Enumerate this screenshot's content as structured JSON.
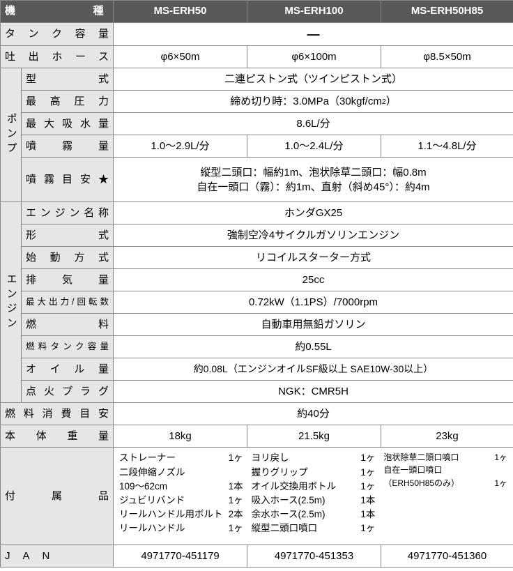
{
  "header": {
    "model_label": "機種",
    "models": [
      "MS-ERH50",
      "MS-ERH100",
      "MS-ERH50H85"
    ]
  },
  "rows": {
    "tank_capacity": {
      "label": "タンク容量",
      "value": "—"
    },
    "hose": {
      "label": "吐出ホース",
      "values": [
        "φ6×50m",
        "φ6×100m",
        "φ8.5×50m"
      ]
    },
    "pump_label": "ポンプ",
    "pump": {
      "type": {
        "label": "型式",
        "value": "二連ピストン式（ツインピストン式）"
      },
      "max_pressure": {
        "label": "最高圧力",
        "value_html": "締め切り時：3.0MPa（30kgf/cm<span class=\"sup\">2</span>）"
      },
      "max_intake": {
        "label": "最大吸水量",
        "value": "8.6L/分"
      },
      "spray_rate": {
        "label": "噴霧量",
        "values": [
          "1.0〜2.9L/分",
          "1.0〜2.4L/分",
          "1.1〜4.8L/分"
        ]
      },
      "spray_guide": {
        "label": "噴霧目安★",
        "line1": "縦型二頭口：幅約1m、泡状除草二頭口：幅0.8m",
        "line2": "自在一頭口（霧）：約1m、直射（斜め45°）：約4m"
      }
    },
    "engine_label": "エンジン",
    "engine": {
      "name": {
        "label": "エンジン名称",
        "value": "ホンダGX25"
      },
      "type": {
        "label": "形式",
        "value": "強制空冷4サイクルガソリンエンジン"
      },
      "start": {
        "label": "始動方式",
        "value": "リコイルスターター方式"
      },
      "disp": {
        "label": "排気量",
        "value": "25cc"
      },
      "power": {
        "label": "最大出力/回転数",
        "value": "0.72kW（1.1PS）/7000rpm"
      },
      "fuel": {
        "label": "燃料",
        "value": "自動車用無鉛ガソリン"
      },
      "fuel_tank": {
        "label": "燃料タンク容量",
        "value": "約0.55L"
      },
      "oil": {
        "label": "オイル量",
        "value": "約0.08L（エンジンオイルSF級以上 SAE10W-30以上）"
      },
      "plug": {
        "label": "点火プラグ",
        "value": "NGK：CMR5H"
      }
    },
    "fuel_consumption": {
      "label": "燃料消費目安",
      "value": "約40分"
    },
    "weight": {
      "label": "本体重量",
      "values": [
        "18kg",
        "21.5kg",
        "23kg"
      ]
    },
    "accessories": {
      "label": "付属品",
      "col1": [
        {
          "name": "ストレーナー",
          "qty": "1ヶ"
        },
        {
          "name": "二段伸縮ノズル",
          "qty": ""
        },
        {
          "name": "109〜62cm",
          "qty": "1本"
        },
        {
          "name": "ジュビリバンド",
          "qty": "1ヶ"
        },
        {
          "name": "リールハンドル用ボルト",
          "qty": "2本"
        },
        {
          "name": "リールハンドル",
          "qty": "1ヶ"
        }
      ],
      "col2": [
        {
          "name": "ヨリ戻し",
          "qty": "1ヶ"
        },
        {
          "name": "握りグリップ",
          "qty": "1ヶ"
        },
        {
          "name": "オイル交換用ボトル",
          "qty": "1ヶ"
        },
        {
          "name": "吸入ホース(2.5m)",
          "qty": "1本"
        },
        {
          "name": "余水ホース(2.5m)",
          "qty": "1本"
        },
        {
          "name": "縦型二頭口噴口",
          "qty": "1ヶ"
        }
      ],
      "col3": [
        {
          "name": "泡状除草二頭口噴口",
          "qty": "1ヶ"
        },
        {
          "name": "自在一頭口噴口",
          "qty": ""
        },
        {
          "name": "（ERH50H85のみ）",
          "qty": "1ヶ"
        }
      ]
    },
    "jan": {
      "label": "JAN",
      "values": [
        "4971770-451179",
        "4971770-451353",
        "4971770-451360"
      ]
    }
  }
}
